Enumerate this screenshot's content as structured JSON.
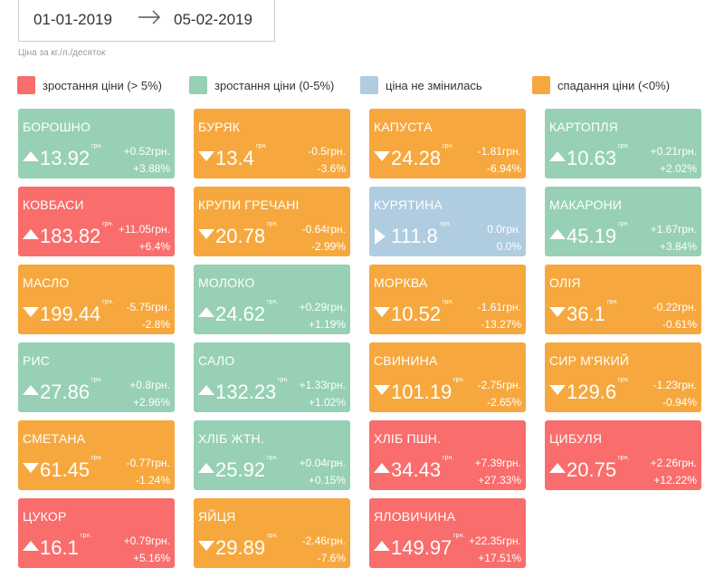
{
  "date_range": {
    "from": "01-01-2019",
    "to": "05-02-2019"
  },
  "unit_note": "Ціна за кг./л./десяток",
  "currency_label": "грн.",
  "legend": [
    {
      "label": "зростання ціни (> 5%)",
      "color": "#f96d6c"
    },
    {
      "label": "зростання ціни (0-5%)",
      "color": "#97d0b4"
    },
    {
      "label": "ціна не змінилась",
      "color": "#b0cce0"
    },
    {
      "label": "спадання ціни (<0%)",
      "color": "#f6a83e"
    }
  ],
  "colors": {
    "high": "#f96d6c",
    "up": "#97d0b4",
    "flat": "#b0cce0",
    "down": "#f6a83e"
  },
  "cards": [
    {
      "name": "БОРОШНО",
      "price": "13.92",
      "delta": "+0.52грн.",
      "pct": "+3.88%",
      "trend": "up",
      "status": "up"
    },
    {
      "name": "БУРЯК",
      "price": "13.4",
      "delta": "-0.5грн.",
      "pct": "-3.6%",
      "trend": "down",
      "status": "down"
    },
    {
      "name": "КАПУСТА",
      "price": "24.28",
      "delta": "-1.81грн.",
      "pct": "-6.94%",
      "trend": "down",
      "status": "down"
    },
    {
      "name": "КАРТОПЛЯ",
      "price": "10.63",
      "delta": "+0.21грн.",
      "pct": "+2.02%",
      "trend": "up",
      "status": "up"
    },
    {
      "name": "КОВБАСИ",
      "price": "183.82",
      "delta": "+11.05грн.",
      "pct": "+6.4%",
      "trend": "up",
      "status": "high"
    },
    {
      "name": "КРУПИ ГРЕЧАНІ",
      "price": "20.78",
      "delta": "-0.64грн.",
      "pct": "-2.99%",
      "trend": "down",
      "status": "down"
    },
    {
      "name": "КУРЯТИНА",
      "price": "111.8",
      "delta": "0.0грн.",
      "pct": "0.0%",
      "trend": "flat",
      "status": "flat"
    },
    {
      "name": "МАКАРОНИ",
      "price": "45.19",
      "delta": "+1.67грн.",
      "pct": "+3.84%",
      "trend": "up",
      "status": "up"
    },
    {
      "name": "МАСЛО",
      "price": "199.44",
      "delta": "-5.75грн.",
      "pct": "-2.8%",
      "trend": "down",
      "status": "down"
    },
    {
      "name": "МОЛОКО",
      "price": "24.62",
      "delta": "+0.29грн.",
      "pct": "+1.19%",
      "trend": "up",
      "status": "up"
    },
    {
      "name": "МОРКВА",
      "price": "10.52",
      "delta": "-1.61грн.",
      "pct": "-13.27%",
      "trend": "down",
      "status": "down"
    },
    {
      "name": "ОЛІЯ",
      "price": "36.1",
      "delta": "-0.22грн.",
      "pct": "-0.61%",
      "trend": "down",
      "status": "down"
    },
    {
      "name": "РИС",
      "price": "27.86",
      "delta": "+0.8грн.",
      "pct": "+2.96%",
      "trend": "up",
      "status": "up"
    },
    {
      "name": "САЛО",
      "price": "132.23",
      "delta": "+1.33грн.",
      "pct": "+1.02%",
      "trend": "up",
      "status": "up"
    },
    {
      "name": "СВИНИНА",
      "price": "101.19",
      "delta": "-2.75грн.",
      "pct": "-2.65%",
      "trend": "down",
      "status": "down"
    },
    {
      "name": "СИР М'ЯКИЙ",
      "price": "129.6",
      "delta": "-1.23грн.",
      "pct": "-0.94%",
      "trend": "down",
      "status": "down"
    },
    {
      "name": "СМЕТАНА",
      "price": "61.45",
      "delta": "-0.77грн.",
      "pct": "-1.24%",
      "trend": "down",
      "status": "down"
    },
    {
      "name": "ХЛІБ ЖТН.",
      "price": "25.92",
      "delta": "+0.04грн.",
      "pct": "+0.15%",
      "trend": "up",
      "status": "up"
    },
    {
      "name": "ХЛІБ ПШН.",
      "price": "34.43",
      "delta": "+7.39грн.",
      "pct": "+27.33%",
      "trend": "up",
      "status": "high"
    },
    {
      "name": "ЦИБУЛЯ",
      "price": "20.75",
      "delta": "+2.26грн.",
      "pct": "+12.22%",
      "trend": "up",
      "status": "high"
    },
    {
      "name": "ЦУКОР",
      "price": "16.1",
      "delta": "+0.79грн.",
      "pct": "+5.16%",
      "trend": "up",
      "status": "high"
    },
    {
      "name": "ЯЙЦЯ",
      "price": "29.89",
      "delta": "-2.46грн.",
      "pct": "-7.6%",
      "trend": "down",
      "status": "down"
    },
    {
      "name": "ЯЛОВИЧИНА",
      "price": "149.97",
      "delta": "+22.35грн.",
      "pct": "+17.51%",
      "trend": "up",
      "status": "high"
    }
  ]
}
